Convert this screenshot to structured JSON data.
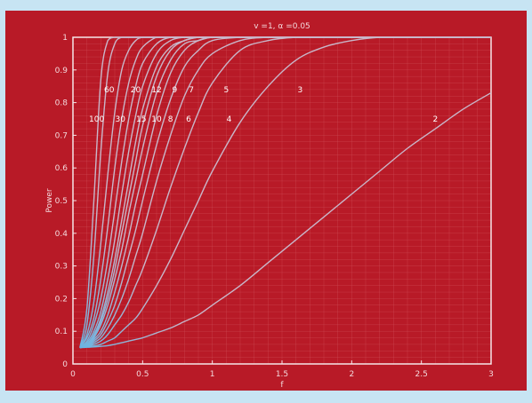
{
  "chart_data": {
    "type": "line",
    "title": "v =1, α =0.05",
    "xlabel": "f",
    "ylabel": "Power",
    "xlim": [
      0,
      3
    ],
    "ylim": [
      0,
      1
    ],
    "grid": true,
    "xticks": [
      0,
      0.5,
      1,
      1.5,
      2,
      2.5,
      3
    ],
    "xtick_labels": [
      "0",
      "0.5",
      "1",
      "1.5",
      "2",
      "2.5",
      "3"
    ],
    "yticks": [
      0,
      0.1,
      0.2,
      0.3,
      0.4,
      0.5,
      0.6,
      0.7,
      0.8,
      0.9,
      1
    ],
    "ytick_labels": [
      "0",
      "0.1",
      "0.2",
      "0.3",
      "0.4",
      "0.5",
      "0.6",
      "0.7",
      "0.8",
      "0.9",
      "1"
    ],
    "x": [
      0.05,
      0.1,
      0.15,
      0.2,
      0.25,
      0.3,
      0.35,
      0.4,
      0.45,
      0.5,
      0.6,
      0.7,
      0.8,
      0.9,
      1.0,
      1.2,
      1.4,
      1.6,
      1.8,
      2.0,
      2.2,
      2.4,
      2.6,
      2.8,
      3.0
    ],
    "series": [
      {
        "name": "100",
        "values": [
          0.05,
          0.17,
          0.5,
          0.87,
          0.99,
          1,
          1,
          1,
          1,
          1,
          1,
          1,
          1,
          1,
          1,
          1,
          1,
          1,
          1,
          1,
          1,
          1,
          1,
          1,
          1
        ]
      },
      {
        "name": "60",
        "values": [
          0.05,
          0.12,
          0.33,
          0.65,
          0.89,
          0.98,
          1,
          1,
          1,
          1,
          1,
          1,
          1,
          1,
          1,
          1,
          1,
          1,
          1,
          1,
          1,
          1,
          1,
          1,
          1
        ]
      },
      {
        "name": "30",
        "values": [
          0.05,
          0.09,
          0.19,
          0.37,
          0.58,
          0.77,
          0.9,
          0.96,
          0.99,
          1,
          1,
          1,
          1,
          1,
          1,
          1,
          1,
          1,
          1,
          1,
          1,
          1,
          1,
          1,
          1
        ]
      },
      {
        "name": "20",
        "values": [
          0.05,
          0.08,
          0.14,
          0.26,
          0.42,
          0.6,
          0.75,
          0.86,
          0.93,
          0.97,
          1,
          1,
          1,
          1,
          1,
          1,
          1,
          1,
          1,
          1,
          1,
          1,
          1,
          1,
          1
        ]
      },
      {
        "name": "15",
        "values": [
          0.05,
          0.07,
          0.12,
          0.2,
          0.32,
          0.47,
          0.62,
          0.75,
          0.85,
          0.92,
          0.98,
          1,
          1,
          1,
          1,
          1,
          1,
          1,
          1,
          1,
          1,
          1,
          1,
          1,
          1
        ]
      },
      {
        "name": "12",
        "values": [
          0.05,
          0.065,
          0.1,
          0.16,
          0.26,
          0.38,
          0.52,
          0.65,
          0.76,
          0.85,
          0.95,
          0.99,
          1,
          1,
          1,
          1,
          1,
          1,
          1,
          1,
          1,
          1,
          1,
          1,
          1
        ]
      },
      {
        "name": "10",
        "values": [
          0.05,
          0.06,
          0.09,
          0.14,
          0.22,
          0.32,
          0.44,
          0.56,
          0.68,
          0.78,
          0.91,
          0.97,
          0.99,
          1,
          1,
          1,
          1,
          1,
          1,
          1,
          1,
          1,
          1,
          1,
          1
        ]
      },
      {
        "name": "9",
        "values": [
          0.05,
          0.06,
          0.085,
          0.13,
          0.2,
          0.29,
          0.4,
          0.51,
          0.62,
          0.73,
          0.88,
          0.96,
          0.99,
          1,
          1,
          1,
          1,
          1,
          1,
          1,
          1,
          1,
          1,
          1,
          1
        ]
      },
      {
        "name": "8",
        "values": [
          0.05,
          0.058,
          0.08,
          0.12,
          0.18,
          0.26,
          0.35,
          0.46,
          0.56,
          0.66,
          0.83,
          0.93,
          0.98,
          0.99,
          1,
          1,
          1,
          1,
          1,
          1,
          1,
          1,
          1,
          1,
          1
        ]
      },
      {
        "name": "7",
        "values": [
          0.05,
          0.056,
          0.075,
          0.1,
          0.15,
          0.22,
          0.3,
          0.39,
          0.49,
          0.58,
          0.76,
          0.89,
          0.96,
          0.99,
          1,
          1,
          1,
          1,
          1,
          1,
          1,
          1,
          1,
          1,
          1
        ]
      },
      {
        "name": "6",
        "values": [
          0.05,
          0.055,
          0.07,
          0.09,
          0.13,
          0.18,
          0.25,
          0.33,
          0.41,
          0.5,
          0.67,
          0.81,
          0.91,
          0.96,
          0.99,
          1,
          1,
          1,
          1,
          1,
          1,
          1,
          1,
          1,
          1
        ]
      },
      {
        "name": "5",
        "values": [
          0.05,
          0.054,
          0.065,
          0.08,
          0.11,
          0.15,
          0.2,
          0.26,
          0.33,
          0.4,
          0.56,
          0.7,
          0.82,
          0.9,
          0.95,
          0.99,
          1,
          1,
          1,
          1,
          1,
          1,
          1,
          1,
          1
        ]
      },
      {
        "name": "4",
        "values": [
          0.05,
          0.053,
          0.06,
          0.07,
          0.09,
          0.12,
          0.15,
          0.19,
          0.24,
          0.29,
          0.41,
          0.54,
          0.66,
          0.77,
          0.86,
          0.96,
          0.99,
          1,
          1,
          1,
          1,
          1,
          1,
          1,
          1
        ]
      },
      {
        "name": "3",
        "values": [
          0.05,
          0.052,
          0.055,
          0.06,
          0.07,
          0.08,
          0.1,
          0.12,
          0.14,
          0.17,
          0.24,
          0.32,
          0.41,
          0.5,
          0.59,
          0.74,
          0.85,
          0.93,
          0.97,
          0.99,
          1,
          1,
          1,
          1,
          1
        ]
      },
      {
        "name": "2",
        "values": [
          0.05,
          0.051,
          0.052,
          0.054,
          0.056,
          0.06,
          0.065,
          0.07,
          0.075,
          0.08,
          0.095,
          0.11,
          0.13,
          0.15,
          0.18,
          0.24,
          0.31,
          0.38,
          0.45,
          0.52,
          0.59,
          0.66,
          0.72,
          0.78,
          0.83
        ]
      }
    ],
    "curve_labels": [
      {
        "text": "100",
        "x": 0.17,
        "y": 0.75
      },
      {
        "text": "60",
        "x": 0.26,
        "y": 0.84
      },
      {
        "text": "30",
        "x": 0.34,
        "y": 0.75
      },
      {
        "text": "20",
        "x": 0.45,
        "y": 0.84
      },
      {
        "text": "15",
        "x": 0.49,
        "y": 0.75
      },
      {
        "text": "12",
        "x": 0.6,
        "y": 0.84
      },
      {
        "text": "10",
        "x": 0.6,
        "y": 0.75
      },
      {
        "text": "9",
        "x": 0.73,
        "y": 0.84
      },
      {
        "text": "8",
        "x": 0.7,
        "y": 0.75
      },
      {
        "text": "7",
        "x": 0.85,
        "y": 0.84
      },
      {
        "text": "6",
        "x": 0.83,
        "y": 0.75
      },
      {
        "text": "5",
        "x": 1.1,
        "y": 0.84
      },
      {
        "text": "4",
        "x": 1.12,
        "y": 0.75
      },
      {
        "text": "3",
        "x": 1.63,
        "y": 0.84
      },
      {
        "text": "2",
        "x": 2.6,
        "y": 0.75
      }
    ],
    "colors": {
      "page_border": "#c7e4f3",
      "background": "#b81a27",
      "axes": "#f6e6e8",
      "grid": "#d3565f",
      "curve": "#c9b6c9",
      "curve_start": "#5ab4e6",
      "text": "#f3d9dc"
    }
  }
}
